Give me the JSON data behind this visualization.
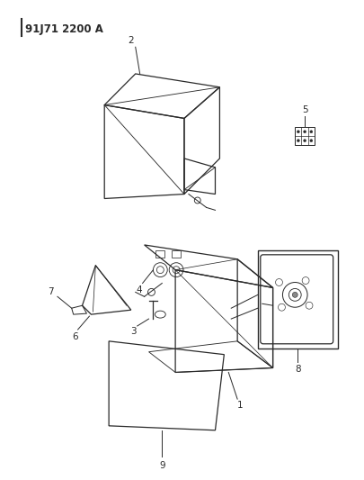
{
  "title": "91J71 2200 A",
  "bg_color": "#ffffff",
  "line_color": "#2a2a2a",
  "figsize": [
    4.05,
    5.33
  ],
  "dpi": 100
}
